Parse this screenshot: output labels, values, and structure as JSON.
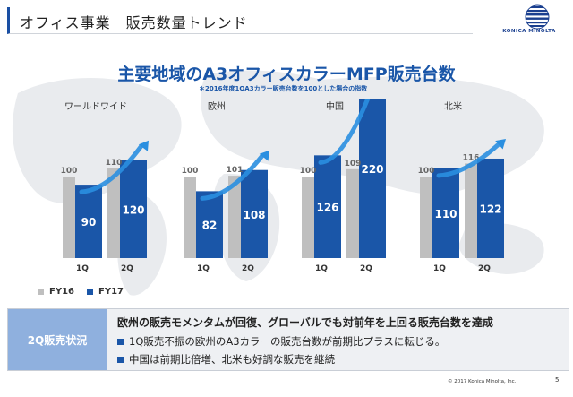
{
  "header": {
    "title": "オフィス事業　販売数量トレンド"
  },
  "logo": {
    "text": "KONICA MINOLTA"
  },
  "colors": {
    "fy16": "#bfbfbf",
    "fy17": "#1a56a8",
    "accent": "#1a56a8",
    "arrow": "#2a8fe0",
    "summary_tag": "#8fb0de"
  },
  "chart_data": {
    "type": "bar",
    "title": "主要地域のA3オフィスカラーMFP販売台数",
    "subtitle": "＊2016年度1QA3カラー販売台数を100とした場合の指数",
    "xlabel": "",
    "ylabel": "",
    "ylim": [
      0,
      230
    ],
    "categories": [
      "1Q",
      "2Q"
    ],
    "series_names": [
      "FY16",
      "FY17"
    ],
    "groups": [
      {
        "region": "ワールドワイド",
        "fy16": [
          100,
          110
        ],
        "fy17": [
          90,
          120
        ]
      },
      {
        "region": "欧州",
        "fy16": [
          100,
          101
        ],
        "fy17": [
          82,
          108
        ]
      },
      {
        "region": "中国",
        "fy16": [
          100,
          109
        ],
        "fy17": [
          126,
          220
        ]
      },
      {
        "region": "北米",
        "fy16": [
          100,
          116
        ],
        "fy17": [
          110,
          122
        ]
      }
    ],
    "legend": [
      "FY16",
      "FY17"
    ],
    "legend_placement": "bottom-left",
    "grid": false
  },
  "summary": {
    "tag": "2Q販売状況",
    "headline": "欧州の販売モメンタムが回復、グローバルでも対前年を上回る販売台数を達成",
    "bullets": [
      "1Q販売不振の欧州のA3カラーの販売台数が前期比プラスに転じる。",
      "中国は前期比倍増、北米も好調な販売を継続"
    ]
  },
  "footer": {
    "copyright": "© 2017 Konica Minolta, Inc.",
    "page": "5"
  }
}
